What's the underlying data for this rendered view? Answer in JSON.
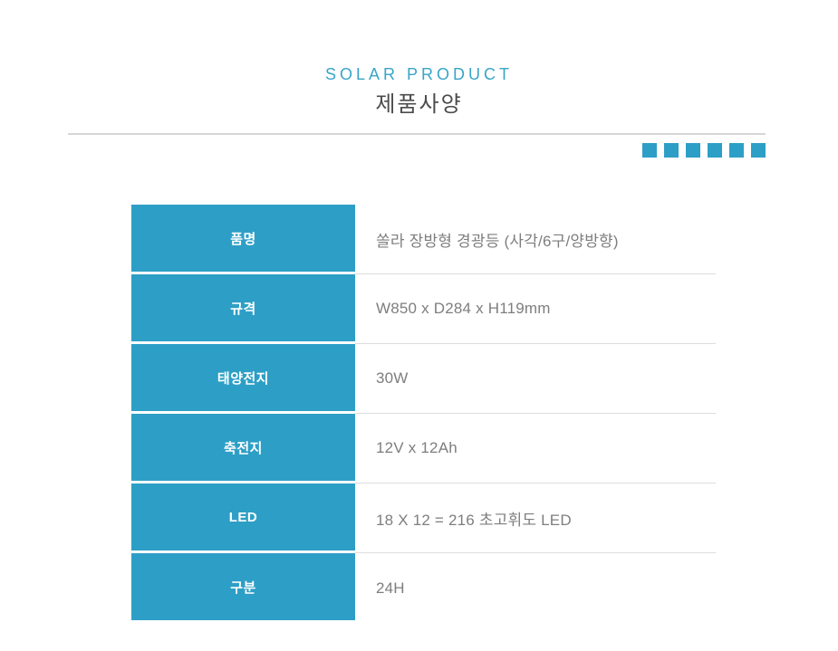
{
  "page": {
    "eyebrow": "SOLAR PRODUCT",
    "title": "제품사양"
  },
  "decor": {
    "accent_color": "#2D9FC6",
    "eyebrow_color": "#38A5C8",
    "square_count": 6
  },
  "spec_table": {
    "rows": [
      {
        "label": "품명",
        "value": "쏠라 장방형 경광등 (사각/6구/양방향)"
      },
      {
        "label": "규격",
        "value": "W850 x D284 x H119mm"
      },
      {
        "label": "태양전지",
        "value": "30W"
      },
      {
        "label": "축전지",
        "value": "12V x 12Ah"
      },
      {
        "label": "LED",
        "value": "18 X 12 = 216 초고휘도 LED"
      },
      {
        "label": "구분",
        "value": "24H"
      }
    ]
  }
}
